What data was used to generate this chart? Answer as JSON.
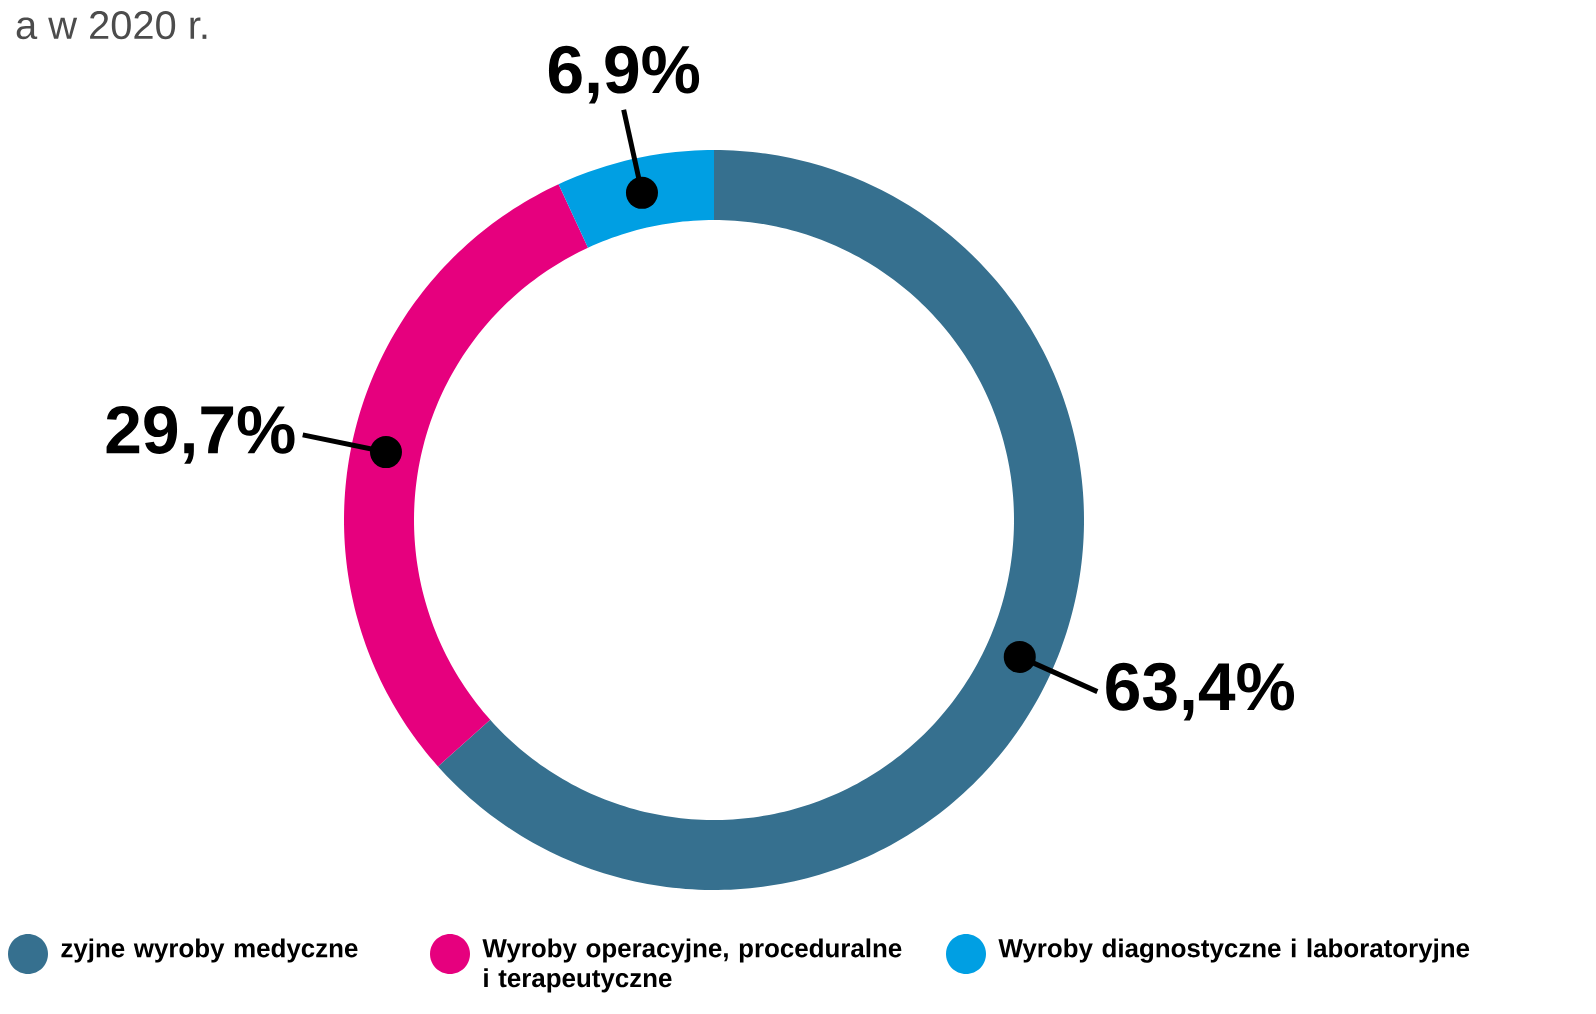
{
  "chart_data": {
    "type": "donut",
    "title": "a w 2020 r.",
    "categories": [
      "zyjne wyroby medyczne",
      "Wyroby operacyjne, proceduralne i terapeutyczne",
      "Wyroby diagnostyczne i laboratoryjne"
    ],
    "values": [
      63.4,
      29.7,
      6.9
    ],
    "colors": [
      "#36708f",
      "#e6007e",
      "#009fe3"
    ],
    "value_labels": [
      "63,4%",
      "29,7%",
      "6,9%"
    ],
    "legend": "bottom"
  }
}
